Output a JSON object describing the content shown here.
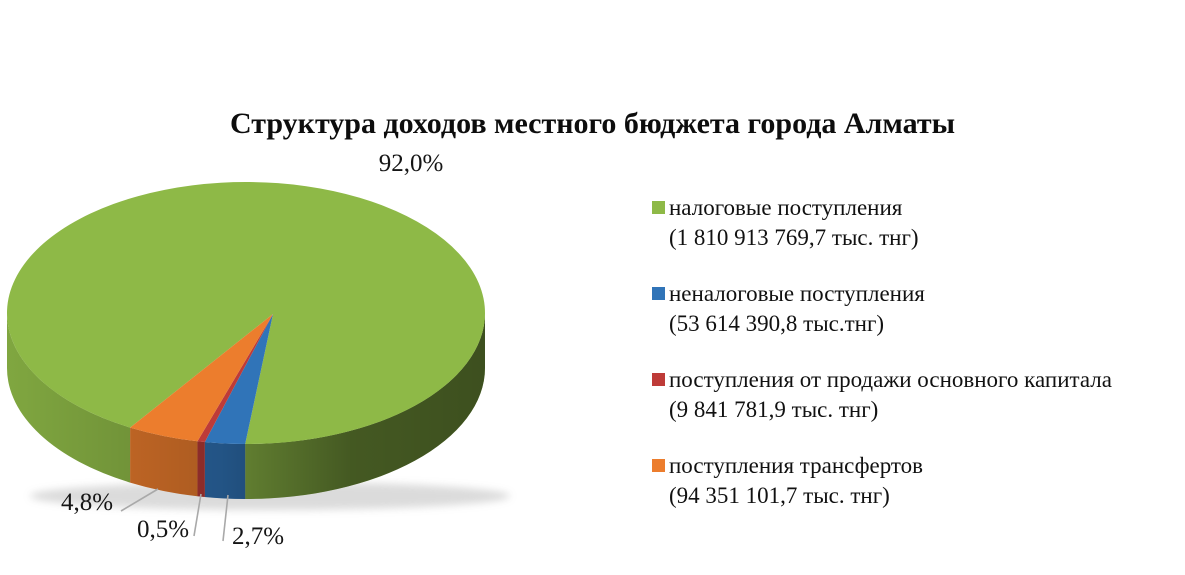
{
  "chart_data": {
    "type": "pie",
    "style": "3d-pie",
    "title": "Структура доходов местного бюджета города Алматы",
    "legend_position": "right",
    "unit": "тыс. тнг",
    "slices": [
      {
        "id": "tax",
        "label": "налоговые поступления",
        "amount_display": "(1 810 913 769,7 тыс. тнг)",
        "amount": "1 810 913 769,7",
        "percent": 92.0,
        "percent_label": "92,0%",
        "color": "#8EB947"
      },
      {
        "id": "non-tax",
        "label": "неналоговые поступления",
        "amount_display": "(53 614 390,8 тыс.тнг)",
        "amount": "53 614 390,8",
        "percent": 2.7,
        "percent_label": "2,7%",
        "color": "#3074B8"
      },
      {
        "id": "capital-sale",
        "label": "поступления от продажи основного капитала",
        "amount_display": "(9 841 781,9 тыс. тнг)",
        "amount": "9 841 781,9",
        "percent": 0.5,
        "percent_label": "0,5%",
        "color": "#BE3B38"
      },
      {
        "id": "transfers",
        "label": "поступления трансфертов",
        "amount_display": "(94 351 101,7 тыс. тнг)",
        "amount": "94 351 101,7",
        "percent": 4.8,
        "percent_label": "4,8%",
        "color": "#EC7D2D"
      }
    ]
  }
}
